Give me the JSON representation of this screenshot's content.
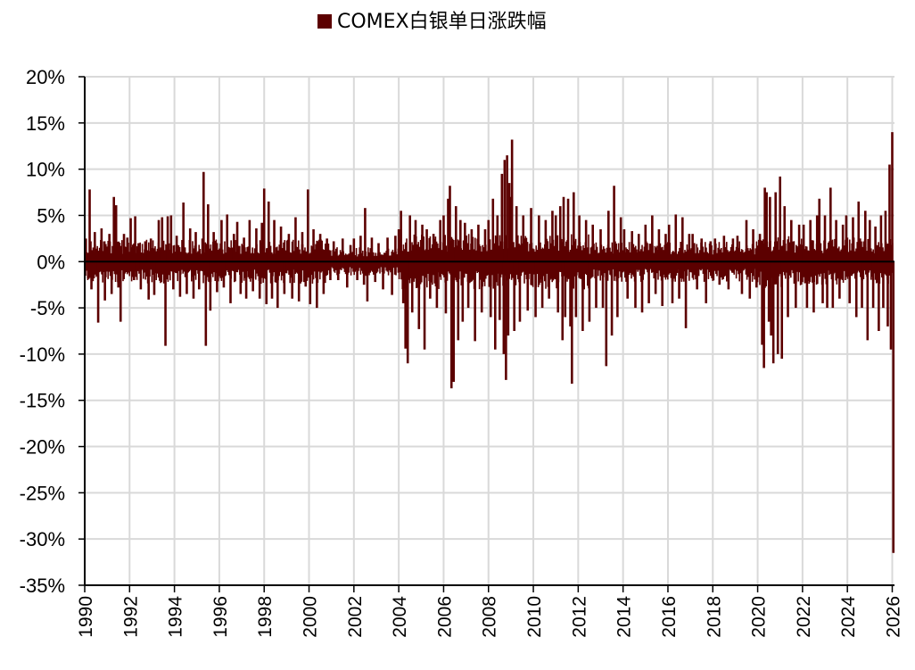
{
  "chart_data": {
    "type": "bar",
    "title": "",
    "xlabel": "",
    "ylabel": "",
    "xlim": [
      1990,
      2026.1
    ],
    "ylim": [
      -35,
      20
    ],
    "y_ticks": [
      20,
      15,
      10,
      5,
      0,
      -5,
      -10,
      -15,
      -20,
      -25,
      -30,
      -35
    ],
    "y_tick_labels": [
      "20%",
      "15%",
      "10%",
      "5%",
      "0%",
      "-5%",
      "-10%",
      "-15%",
      "-20%",
      "-25%",
      "-30%",
      "-35%"
    ],
    "x_ticks": [
      1990,
      1992,
      1994,
      1996,
      1998,
      2000,
      2002,
      2004,
      2006,
      2008,
      2010,
      2012,
      2014,
      2016,
      2018,
      2020,
      2022,
      2024,
      2026
    ],
    "x_tick_labels": [
      "1990",
      "1992",
      "1994",
      "1996",
      "1998",
      "2000",
      "2002",
      "2004",
      "2006",
      "2008",
      "2010",
      "2012",
      "2014",
      "2016",
      "2018",
      "2020",
      "2022",
      "2024",
      "2026"
    ],
    "grid": true,
    "legend_position": "top-center",
    "series": [
      {
        "name": "COMEX白银单日涨跌幅",
        "color": "#5C0000",
        "note_points_unit": "percent",
        "points": [
          [
            1990.05,
            2.5
          ],
          [
            1990.15,
            -1.8
          ],
          [
            1990.22,
            7.8
          ],
          [
            1990.3,
            -3.0
          ],
          [
            1990.45,
            3.2
          ],
          [
            1990.6,
            -6.6
          ],
          [
            1990.75,
            3.6
          ],
          [
            1990.9,
            -4.2
          ],
          [
            1991.1,
            3.0
          ],
          [
            1991.2,
            -3.5
          ],
          [
            1991.3,
            7.0
          ],
          [
            1991.4,
            6.1
          ],
          [
            1991.5,
            -2.8
          ],
          [
            1991.6,
            -6.5
          ],
          [
            1991.75,
            3.0
          ],
          [
            1991.9,
            2.6
          ],
          [
            1992.05,
            4.7
          ],
          [
            1992.2,
            -2.0
          ],
          [
            1992.25,
            4.9
          ],
          [
            1992.4,
            2.0
          ],
          [
            1992.5,
            -3.0
          ],
          [
            1992.7,
            2.2
          ],
          [
            1992.85,
            -4.1
          ],
          [
            1992.95,
            2.5
          ],
          [
            1993.1,
            -3.6
          ],
          [
            1993.3,
            4.5
          ],
          [
            1993.45,
            4.8
          ],
          [
            1993.6,
            -9.1
          ],
          [
            1993.7,
            4.9
          ],
          [
            1993.85,
            5.0
          ],
          [
            1993.95,
            -3.0
          ],
          [
            1994.1,
            2.8
          ],
          [
            1994.25,
            -3.8
          ],
          [
            1994.4,
            6.4
          ],
          [
            1994.55,
            -3.5
          ],
          [
            1994.7,
            3.6
          ],
          [
            1994.85,
            -4.0
          ],
          [
            1994.95,
            3.2
          ],
          [
            1995.1,
            -3.0
          ],
          [
            1995.25,
            2.5
          ],
          [
            1995.3,
            9.7
          ],
          [
            1995.4,
            -9.1
          ],
          [
            1995.5,
            6.2
          ],
          [
            1995.6,
            -5.3
          ],
          [
            1995.75,
            3.2
          ],
          [
            1995.9,
            -3.3
          ],
          [
            1996.1,
            4.5
          ],
          [
            1996.2,
            -2.8
          ],
          [
            1996.35,
            5.1
          ],
          [
            1996.5,
            -4.5
          ],
          [
            1996.65,
            3.0
          ],
          [
            1996.8,
            4.3
          ],
          [
            1996.95,
            -3.5
          ],
          [
            1997.1,
            2.6
          ],
          [
            1997.2,
            -4.0
          ],
          [
            1997.35,
            4.5
          ],
          [
            1997.5,
            -3.2
          ],
          [
            1997.65,
            3.6
          ],
          [
            1997.8,
            -4.0
          ],
          [
            1997.9,
            4.2
          ],
          [
            1998.0,
            7.9
          ],
          [
            1998.1,
            -4.6
          ],
          [
            1998.2,
            6.5
          ],
          [
            1998.35,
            -4.0
          ],
          [
            1998.45,
            4.5
          ],
          [
            1998.6,
            -5.0
          ],
          [
            1998.75,
            3.8
          ],
          [
            1998.9,
            -3.5
          ],
          [
            1999.1,
            3.0
          ],
          [
            1999.25,
            -4.0
          ],
          [
            1999.4,
            4.8
          ],
          [
            1999.55,
            -4.3
          ],
          [
            1999.7,
            3.2
          ],
          [
            1999.85,
            -2.7
          ],
          [
            1999.95,
            7.8
          ],
          [
            2000.05,
            -4.6
          ],
          [
            2000.2,
            3.5
          ],
          [
            2000.35,
            -5.0
          ],
          [
            2000.5,
            3.0
          ],
          [
            2000.65,
            -3.5
          ],
          [
            2000.8,
            2.5
          ],
          [
            2000.95,
            -2.0
          ],
          [
            2001.1,
            2.2
          ],
          [
            2001.3,
            -2.0
          ],
          [
            2001.5,
            2.5
          ],
          [
            2001.7,
            -2.8
          ],
          [
            2001.85,
            1.8
          ],
          [
            2002.0,
            2.5
          ],
          [
            2002.15,
            -2.0
          ],
          [
            2002.3,
            2.8
          ],
          [
            2002.45,
            -2.5
          ],
          [
            2002.5,
            5.8
          ],
          [
            2002.6,
            -4.3
          ],
          [
            2002.8,
            2.6
          ],
          [
            2002.95,
            -2.2
          ],
          [
            2003.1,
            2.0
          ],
          [
            2003.3,
            -3.0
          ],
          [
            2003.5,
            2.6
          ],
          [
            2003.7,
            -3.6
          ],
          [
            2003.85,
            2.8
          ],
          [
            2004.0,
            3.5
          ],
          [
            2004.1,
            5.5
          ],
          [
            2004.2,
            -4.5
          ],
          [
            2004.3,
            -9.4
          ],
          [
            2004.4,
            -11.0
          ],
          [
            2004.5,
            5.0
          ],
          [
            2004.6,
            -5.5
          ],
          [
            2004.75,
            4.5
          ],
          [
            2004.9,
            -7.3
          ],
          [
            2005.05,
            4.0
          ],
          [
            2005.15,
            -9.5
          ],
          [
            2005.25,
            3.5
          ],
          [
            2005.4,
            -4.0
          ],
          [
            2005.55,
            3.0
          ],
          [
            2005.7,
            -5.0
          ],
          [
            2005.85,
            4.5
          ],
          [
            2006.0,
            5.0
          ],
          [
            2006.1,
            -5.6
          ],
          [
            2006.2,
            6.8
          ],
          [
            2006.28,
            8.2
          ],
          [
            2006.35,
            -13.7
          ],
          [
            2006.45,
            -13.0
          ],
          [
            2006.55,
            6.0
          ],
          [
            2006.65,
            -8.5
          ],
          [
            2006.75,
            4.5
          ],
          [
            2006.85,
            -6.5
          ],
          [
            2006.95,
            4.2
          ],
          [
            2007.1,
            -5.0
          ],
          [
            2007.25,
            3.5
          ],
          [
            2007.4,
            -8.6
          ],
          [
            2007.55,
            4.0
          ],
          [
            2007.7,
            -5.5
          ],
          [
            2007.85,
            3.5
          ],
          [
            2008.0,
            4.5
          ],
          [
            2008.1,
            -6.0
          ],
          [
            2008.2,
            6.8
          ],
          [
            2008.3,
            -9.5
          ],
          [
            2008.4,
            5.0
          ],
          [
            2008.5,
            -6.3
          ],
          [
            2008.6,
            9.5
          ],
          [
            2008.68,
            -10.0
          ],
          [
            2008.72,
            11.0
          ],
          [
            2008.78,
            -12.8
          ],
          [
            2008.83,
            11.5
          ],
          [
            2008.88,
            -8.0
          ],
          [
            2008.93,
            8.5
          ],
          [
            2009.0,
            7.0
          ],
          [
            2009.05,
            13.2
          ],
          [
            2009.15,
            -7.5
          ],
          [
            2009.25,
            6.0
          ],
          [
            2009.4,
            -6.5
          ],
          [
            2009.55,
            5.0
          ],
          [
            2009.75,
            -5.3
          ],
          [
            2009.9,
            5.8
          ],
          [
            2010.1,
            -6.0
          ],
          [
            2010.25,
            5.0
          ],
          [
            2010.4,
            -5.0
          ],
          [
            2010.55,
            4.5
          ],
          [
            2010.7,
            -4.0
          ],
          [
            2010.85,
            5.5
          ],
          [
            2011.0,
            5.0
          ],
          [
            2011.1,
            -5.5
          ],
          [
            2011.2,
            6.0
          ],
          [
            2011.3,
            -8.5
          ],
          [
            2011.35,
            7.0
          ],
          [
            2011.42,
            -6.0
          ],
          [
            2011.55,
            6.8
          ],
          [
            2011.65,
            -7.0
          ],
          [
            2011.72,
            -13.2
          ],
          [
            2011.8,
            7.5
          ],
          [
            2011.9,
            -6.0
          ],
          [
            2012.05,
            5.0
          ],
          [
            2012.2,
            -7.5
          ],
          [
            2012.35,
            4.5
          ],
          [
            2012.5,
            -6.5
          ],
          [
            2012.65,
            4.0
          ],
          [
            2012.8,
            -5.0
          ],
          [
            2013.0,
            3.5
          ],
          [
            2013.1,
            -5.0
          ],
          [
            2013.25,
            -11.3
          ],
          [
            2013.35,
            5.5
          ],
          [
            2013.5,
            -8.0
          ],
          [
            2013.6,
            8.2
          ],
          [
            2013.75,
            -6.0
          ],
          [
            2013.9,
            4.8
          ],
          [
            2014.05,
            3.5
          ],
          [
            2014.2,
            -4.0
          ],
          [
            2014.4,
            3.3
          ],
          [
            2014.55,
            -5.0
          ],
          [
            2014.7,
            3.0
          ],
          [
            2014.85,
            -5.5
          ],
          [
            2015.0,
            4.0
          ],
          [
            2015.15,
            -4.5
          ],
          [
            2015.3,
            5.0
          ],
          [
            2015.45,
            -3.5
          ],
          [
            2015.6,
            3.5
          ],
          [
            2015.75,
            -4.8
          ],
          [
            2015.9,
            3.0
          ],
          [
            2016.05,
            4.0
          ],
          [
            2016.2,
            -4.5
          ],
          [
            2016.35,
            5.1
          ],
          [
            2016.5,
            -4.0
          ],
          [
            2016.65,
            4.8
          ],
          [
            2016.8,
            -7.2
          ],
          [
            2016.95,
            3.0
          ],
          [
            2017.1,
            3.0
          ],
          [
            2017.3,
            -3.0
          ],
          [
            2017.5,
            2.5
          ],
          [
            2017.7,
            -4.5
          ],
          [
            2017.9,
            2.2
          ],
          [
            2018.1,
            2.5
          ],
          [
            2018.3,
            -2.5
          ],
          [
            2018.5,
            2.8
          ],
          [
            2018.7,
            -3.0
          ],
          [
            2018.9,
            2.5
          ],
          [
            2019.1,
            2.8
          ],
          [
            2019.3,
            -3.5
          ],
          [
            2019.5,
            4.5
          ],
          [
            2019.65,
            -4.0
          ],
          [
            2019.8,
            3.5
          ],
          [
            2019.95,
            -2.8
          ],
          [
            2020.1,
            3.0
          ],
          [
            2020.2,
            -9.0
          ],
          [
            2020.28,
            -11.5
          ],
          [
            2020.32,
            8.0
          ],
          [
            2020.4,
            7.5
          ],
          [
            2020.5,
            -6.5
          ],
          [
            2020.55,
            7.0
          ],
          [
            2020.6,
            -8.0
          ],
          [
            2020.7,
            -11.0
          ],
          [
            2020.8,
            7.5
          ],
          [
            2020.9,
            -10.0
          ],
          [
            2021.0,
            9.2
          ],
          [
            2021.08,
            -10.5
          ],
          [
            2021.2,
            6.0
          ],
          [
            2021.35,
            -6.0
          ],
          [
            2021.5,
            4.5
          ],
          [
            2021.7,
            -5.0
          ],
          [
            2021.85,
            4.0
          ],
          [
            2022.05,
            4.0
          ],
          [
            2022.2,
            -5.0
          ],
          [
            2022.35,
            4.5
          ],
          [
            2022.5,
            -5.5
          ],
          [
            2022.65,
            5.0
          ],
          [
            2022.75,
            6.8
          ],
          [
            2022.9,
            -4.5
          ],
          [
            2023.0,
            5.0
          ],
          [
            2023.1,
            -5.0
          ],
          [
            2023.25,
            8.0
          ],
          [
            2023.35,
            -5.0
          ],
          [
            2023.5,
            4.5
          ],
          [
            2023.65,
            -4.0
          ],
          [
            2023.8,
            4.0
          ],
          [
            2023.95,
            5.0
          ],
          [
            2024.1,
            -4.5
          ],
          [
            2024.25,
            4.8
          ],
          [
            2024.4,
            -6.0
          ],
          [
            2024.5,
            6.5
          ],
          [
            2024.65,
            -5.0
          ],
          [
            2024.8,
            5.5
          ],
          [
            2024.9,
            -8.5
          ],
          [
            2025.0,
            4.5
          ],
          [
            2025.15,
            -5.0
          ],
          [
            2025.25,
            3.8
          ],
          [
            2025.4,
            -7.5
          ],
          [
            2025.5,
            5.0
          ],
          [
            2025.6,
            -5.0
          ],
          [
            2025.7,
            5.5
          ],
          [
            2025.8,
            -7.0
          ],
          [
            2025.88,
            10.5
          ],
          [
            2025.94,
            -9.5
          ],
          [
            2026.0,
            14.0
          ],
          [
            2026.05,
            -31.5
          ]
        ]
      }
    ]
  }
}
